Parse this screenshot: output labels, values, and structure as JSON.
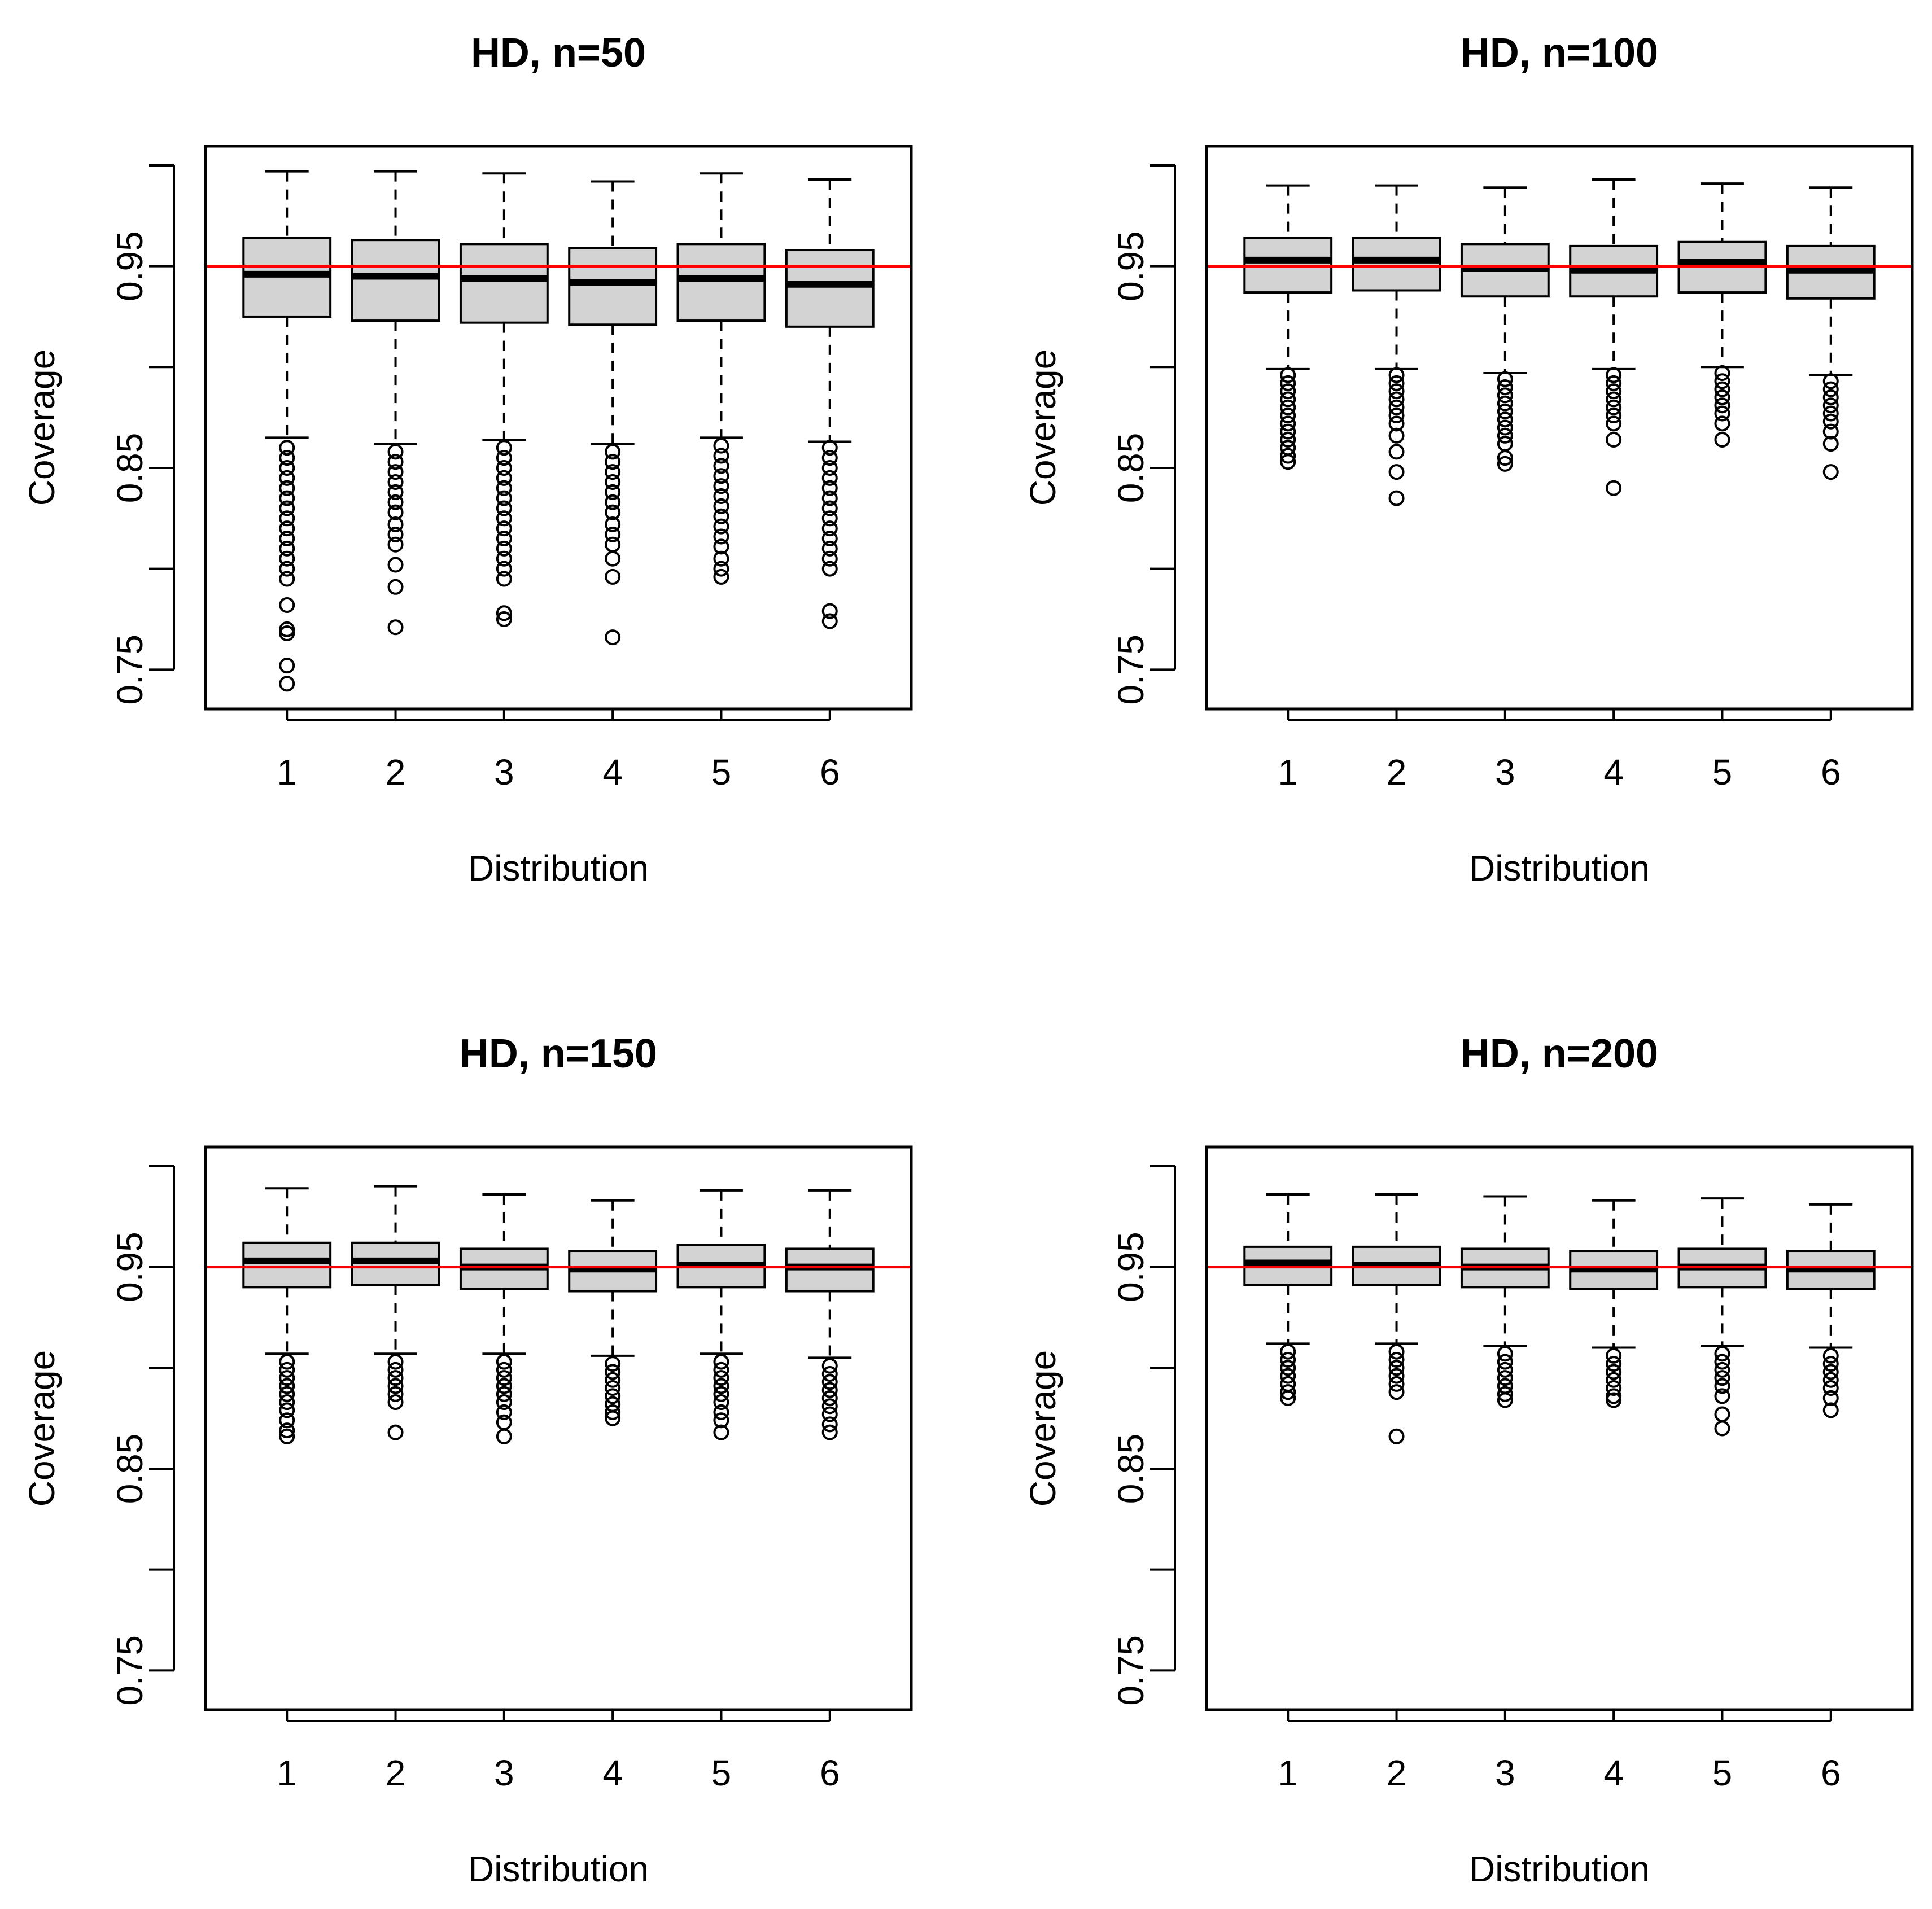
{
  "figure": {
    "description_free": true
  },
  "chart_data": [
    {
      "type": "boxplot",
      "title": "HD, n=50",
      "xlabel": "Distribution",
      "ylabel": "Coverage",
      "categories": [
        "1",
        "2",
        "3",
        "4",
        "5",
        "6"
      ],
      "yticks": [
        "0.75",
        "0.85",
        "0.95"
      ],
      "ytick_values": [
        0.75,
        0.8,
        0.85,
        0.9,
        0.95,
        1.0
      ],
      "ylim": [
        0.7305,
        1.0095
      ],
      "reference_line": {
        "y": 0.95,
        "color": "#ff0000"
      },
      "boxes": [
        {
          "min": 0.865,
          "q1": 0.925,
          "median": 0.946,
          "q3": 0.964,
          "max": 0.997
        },
        {
          "min": 0.862,
          "q1": 0.923,
          "median": 0.945,
          "q3": 0.963,
          "max": 0.997
        },
        {
          "min": 0.864,
          "q1": 0.922,
          "median": 0.944,
          "q3": 0.961,
          "max": 0.996
        },
        {
          "min": 0.862,
          "q1": 0.921,
          "median": 0.942,
          "q3": 0.959,
          "max": 0.992
        },
        {
          "min": 0.865,
          "q1": 0.923,
          "median": 0.944,
          "q3": 0.961,
          "max": 0.996
        },
        {
          "min": 0.863,
          "q1": 0.92,
          "median": 0.941,
          "q3": 0.958,
          "max": 0.993
        }
      ],
      "outliers": [
        [
          0.86,
          0.855,
          0.85,
          0.845,
          0.84,
          0.835,
          0.83,
          0.825,
          0.82,
          0.815,
          0.81,
          0.805,
          0.8,
          0.795,
          0.782,
          0.77,
          0.768,
          0.752,
          0.743
        ],
        [
          0.858,
          0.853,
          0.848,
          0.843,
          0.838,
          0.833,
          0.828,
          0.822,
          0.817,
          0.812,
          0.802,
          0.791,
          0.771
        ],
        [
          0.86,
          0.855,
          0.85,
          0.845,
          0.84,
          0.835,
          0.83,
          0.825,
          0.82,
          0.815,
          0.81,
          0.805,
          0.8,
          0.795,
          0.778,
          0.775
        ],
        [
          0.858,
          0.853,
          0.848,
          0.843,
          0.838,
          0.833,
          0.828,
          0.822,
          0.817,
          0.812,
          0.805,
          0.796,
          0.766
        ],
        [
          0.861,
          0.856,
          0.851,
          0.846,
          0.841,
          0.836,
          0.831,
          0.826,
          0.821,
          0.816,
          0.811,
          0.805,
          0.8,
          0.796
        ],
        [
          0.86,
          0.855,
          0.85,
          0.845,
          0.84,
          0.835,
          0.83,
          0.825,
          0.82,
          0.815,
          0.81,
          0.805,
          0.8,
          0.779,
          0.774
        ]
      ]
    },
    {
      "type": "boxplot",
      "title": "HD, n=100",
      "xlabel": "Distribution",
      "ylabel": "Coverage",
      "categories": [
        "1",
        "2",
        "3",
        "4",
        "5",
        "6"
      ],
      "yticks": [
        "0.75",
        "0.85",
        "0.95"
      ],
      "ytick_values": [
        0.75,
        0.8,
        0.85,
        0.9,
        0.95,
        1.0
      ],
      "ylim": [
        0.7305,
        1.0095
      ],
      "reference_line": {
        "y": 0.95,
        "color": "#ff0000"
      },
      "boxes": [
        {
          "min": 0.899,
          "q1": 0.937,
          "median": 0.953,
          "q3": 0.964,
          "max": 0.99
        },
        {
          "min": 0.899,
          "q1": 0.938,
          "median": 0.953,
          "q3": 0.964,
          "max": 0.99
        },
        {
          "min": 0.897,
          "q1": 0.935,
          "median": 0.949,
          "q3": 0.961,
          "max": 0.989
        },
        {
          "min": 0.899,
          "q1": 0.935,
          "median": 0.948,
          "q3": 0.96,
          "max": 0.993
        },
        {
          "min": 0.9,
          "q1": 0.937,
          "median": 0.952,
          "q3": 0.962,
          "max": 0.991
        },
        {
          "min": 0.896,
          "q1": 0.934,
          "median": 0.948,
          "q3": 0.96,
          "max": 0.989
        }
      ],
      "outliers": [
        [
          0.896,
          0.892,
          0.888,
          0.884,
          0.88,
          0.876,
          0.872,
          0.868,
          0.864,
          0.86,
          0.856,
          0.853
        ],
        [
          0.896,
          0.892,
          0.888,
          0.884,
          0.88,
          0.876,
          0.872,
          0.866,
          0.858,
          0.848,
          0.835
        ],
        [
          0.894,
          0.89,
          0.886,
          0.882,
          0.878,
          0.874,
          0.87,
          0.866,
          0.862,
          0.855,
          0.852
        ],
        [
          0.896,
          0.892,
          0.888,
          0.884,
          0.88,
          0.876,
          0.872,
          0.864,
          0.84
        ],
        [
          0.897,
          0.893,
          0.889,
          0.885,
          0.881,
          0.877,
          0.872,
          0.864
        ],
        [
          0.893,
          0.889,
          0.885,
          0.881,
          0.877,
          0.873,
          0.868,
          0.862,
          0.848
        ]
      ]
    },
    {
      "type": "boxplot",
      "title": "HD, n=150",
      "xlabel": "Distribution",
      "ylabel": "Coverage",
      "categories": [
        "1",
        "2",
        "3",
        "4",
        "5",
        "6"
      ],
      "yticks": [
        "0.75",
        "0.85",
        "0.95"
      ],
      "ytick_values": [
        0.75,
        0.8,
        0.85,
        0.9,
        0.95,
        1.0
      ],
      "ylim": [
        0.7305,
        1.0095
      ],
      "reference_line": {
        "y": 0.95,
        "color": "#ff0000"
      },
      "boxes": [
        {
          "min": 0.907,
          "q1": 0.94,
          "median": 0.953,
          "q3": 0.962,
          "max": 0.989
        },
        {
          "min": 0.907,
          "q1": 0.941,
          "median": 0.953,
          "q3": 0.962,
          "max": 0.99
        },
        {
          "min": 0.907,
          "q1": 0.939,
          "median": 0.95,
          "q3": 0.959,
          "max": 0.986
        },
        {
          "min": 0.906,
          "q1": 0.938,
          "median": 0.949,
          "q3": 0.958,
          "max": 0.983
        },
        {
          "min": 0.907,
          "q1": 0.94,
          "median": 0.951,
          "q3": 0.961,
          "max": 0.988
        },
        {
          "min": 0.905,
          "q1": 0.938,
          "median": 0.95,
          "q3": 0.959,
          "max": 0.988
        }
      ],
      "outliers": [
        [
          0.903,
          0.899,
          0.895,
          0.891,
          0.887,
          0.883,
          0.879,
          0.874,
          0.869,
          0.866
        ],
        [
          0.903,
          0.899,
          0.895,
          0.891,
          0.887,
          0.883,
          0.868
        ],
        [
          0.903,
          0.899,
          0.895,
          0.891,
          0.887,
          0.883,
          0.878,
          0.873,
          0.866
        ],
        [
          0.902,
          0.898,
          0.894,
          0.89,
          0.886,
          0.882,
          0.878,
          0.875
        ],
        [
          0.903,
          0.899,
          0.895,
          0.891,
          0.887,
          0.883,
          0.878,
          0.874,
          0.868
        ],
        [
          0.901,
          0.897,
          0.893,
          0.889,
          0.885,
          0.881,
          0.877,
          0.872,
          0.868
        ]
      ]
    },
    {
      "type": "boxplot",
      "title": "HD, n=200",
      "xlabel": "Distribution",
      "ylabel": "Coverage",
      "categories": [
        "1",
        "2",
        "3",
        "4",
        "5",
        "6"
      ],
      "yticks": [
        "0.75",
        "0.85",
        "0.95"
      ],
      "ytick_values": [
        0.75,
        0.8,
        0.85,
        0.9,
        0.95,
        1.0
      ],
      "ylim": [
        0.7305,
        1.0095
      ],
      "reference_line": {
        "y": 0.95,
        "color": "#ff0000"
      },
      "boxes": [
        {
          "min": 0.912,
          "q1": 0.941,
          "median": 0.952,
          "q3": 0.96,
          "max": 0.986
        },
        {
          "min": 0.912,
          "q1": 0.941,
          "median": 0.951,
          "q3": 0.96,
          "max": 0.986
        },
        {
          "min": 0.911,
          "q1": 0.94,
          "median": 0.95,
          "q3": 0.959,
          "max": 0.985
        },
        {
          "min": 0.91,
          "q1": 0.939,
          "median": 0.949,
          "q3": 0.958,
          "max": 0.983
        },
        {
          "min": 0.911,
          "q1": 0.94,
          "median": 0.95,
          "q3": 0.959,
          "max": 0.984
        },
        {
          "min": 0.91,
          "q1": 0.939,
          "median": 0.949,
          "q3": 0.958,
          "max": 0.981
        }
      ],
      "outliers": [
        [
          0.908,
          0.904,
          0.9,
          0.896,
          0.892,
          0.888,
          0.885
        ],
        [
          0.908,
          0.904,
          0.9,
          0.896,
          0.892,
          0.888,
          0.866
        ],
        [
          0.907,
          0.903,
          0.899,
          0.895,
          0.891,
          0.887,
          0.884
        ],
        [
          0.906,
          0.902,
          0.898,
          0.894,
          0.89,
          0.886,
          0.884
        ],
        [
          0.907,
          0.903,
          0.899,
          0.895,
          0.891,
          0.886,
          0.877,
          0.87
        ],
        [
          0.906,
          0.902,
          0.898,
          0.894,
          0.89,
          0.885,
          0.879
        ]
      ]
    }
  ]
}
